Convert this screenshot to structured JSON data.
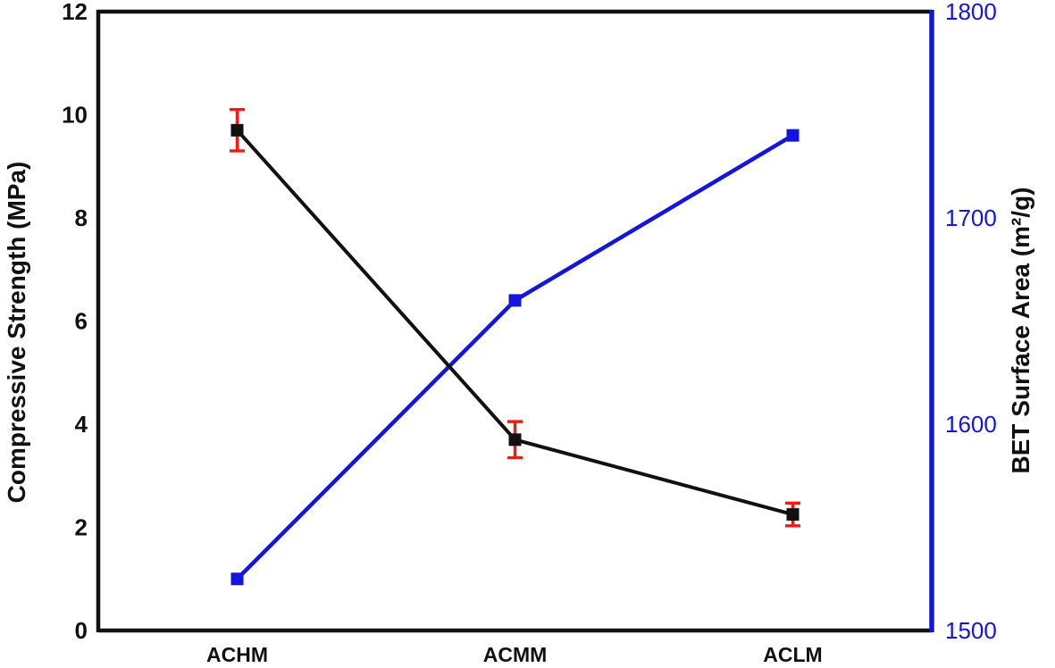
{
  "chart_data": {
    "type": "line",
    "categories": [
      "ACHM",
      "ACMM",
      "ACLM"
    ],
    "series": [
      {
        "name": "Compressive Strength",
        "axis": "left",
        "color": "#111111",
        "marker": "square",
        "values": [
          9.7,
          3.7,
          2.25
        ],
        "error_bars": [
          0.4,
          0.35,
          0.22
        ],
        "error_color": "#ff1414"
      },
      {
        "name": "BET Surface Area",
        "axis": "right",
        "color": "#1414e1",
        "marker": "square",
        "values": [
          1525,
          1660,
          1740
        ]
      }
    ],
    "left_axis": {
      "label": "Compressive Strength (MPa)",
      "range": [
        0,
        12
      ],
      "ticks": [
        0,
        2,
        4,
        6,
        8,
        10,
        12
      ],
      "color": "#111111"
    },
    "right_axis": {
      "label": "BET Surface Area (m²/g)",
      "range": [
        1500,
        1800
      ],
      "ticks": [
        1500,
        1600,
        1700,
        1800
      ],
      "color": "#1414e1"
    },
    "grid": false,
    "legend": "none",
    "background": "#ffffff"
  }
}
